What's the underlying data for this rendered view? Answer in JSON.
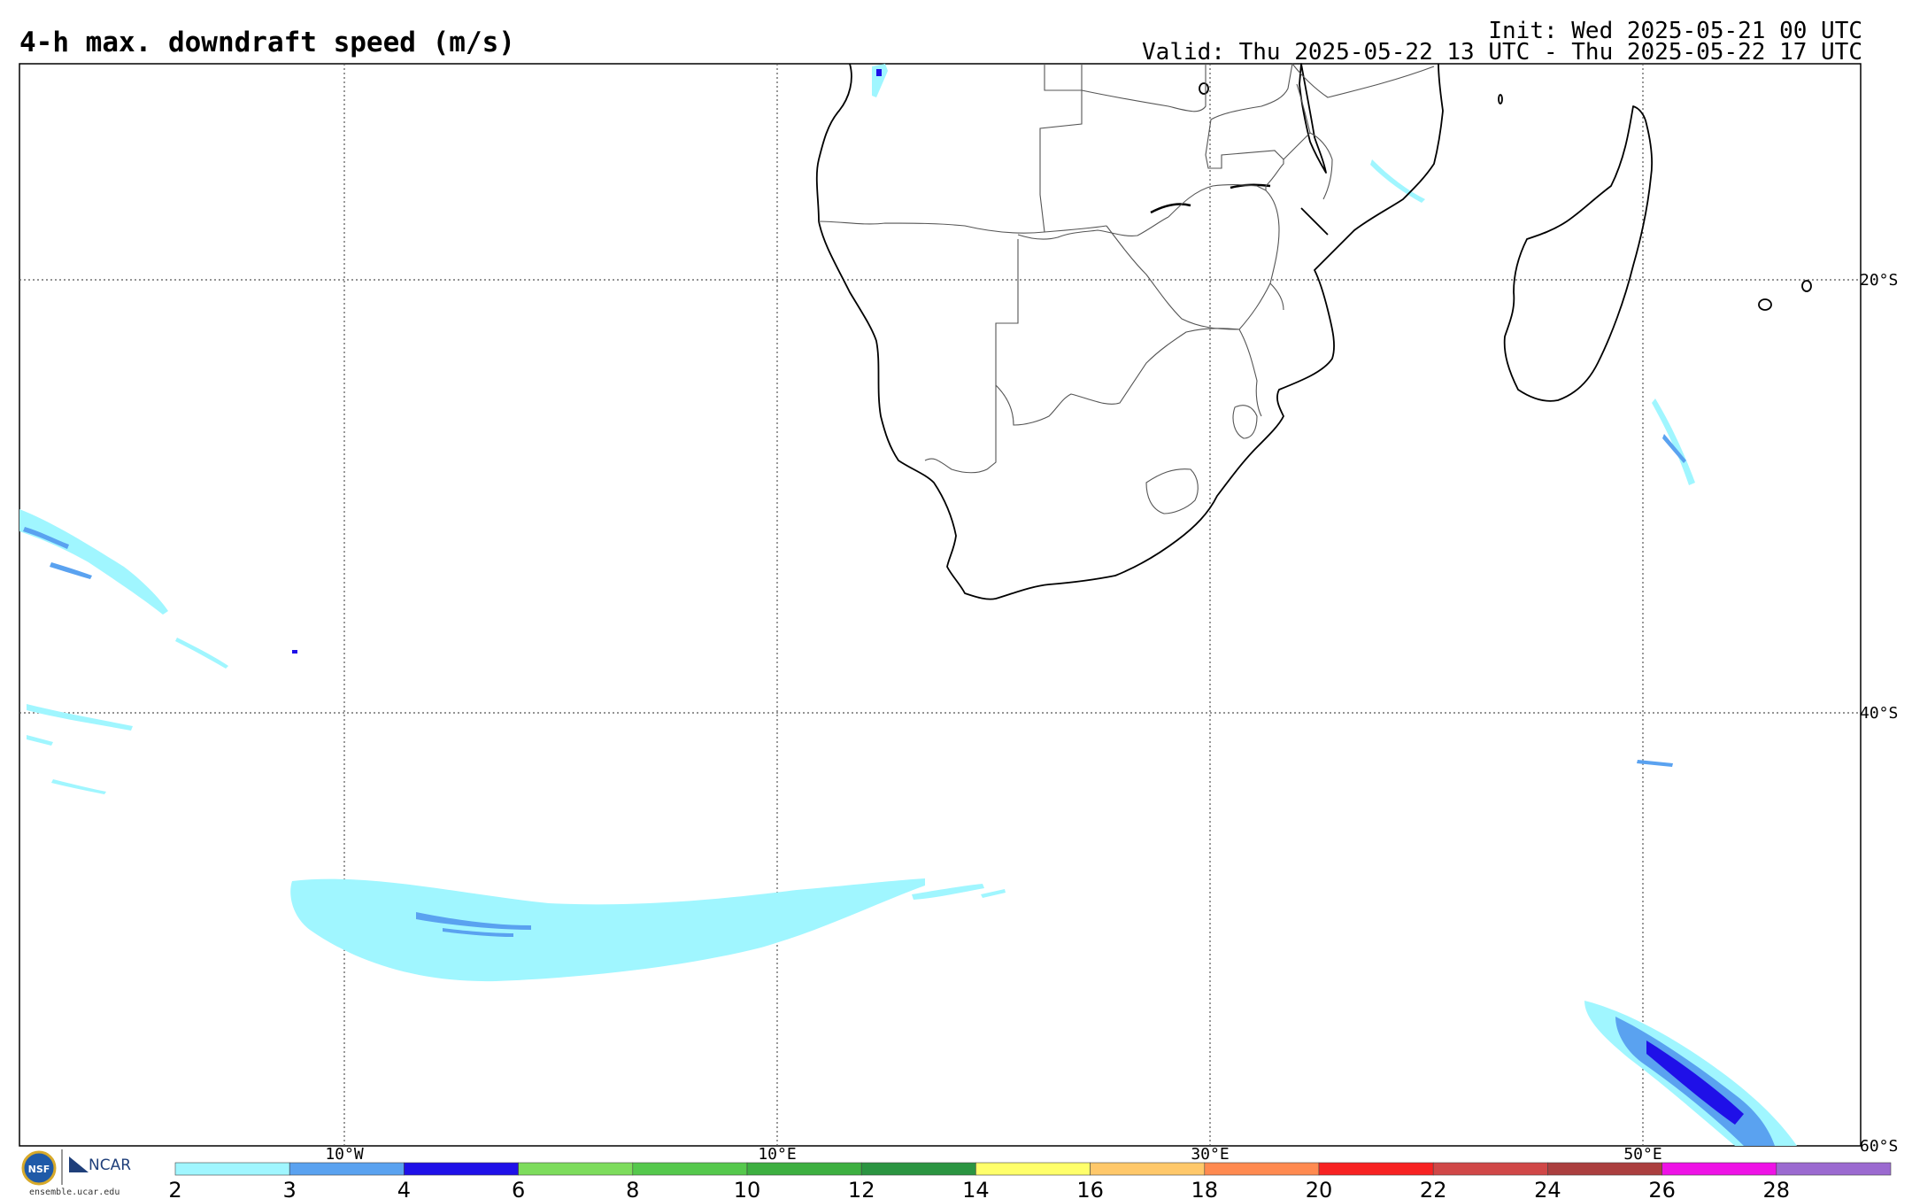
{
  "header": {
    "title": "4-h max. downdraft speed (m/s)",
    "init": "Init: Wed 2025-05-21 00 UTC",
    "valid": "Valid: Thu 2025-05-22 13 UTC - Thu 2025-05-22 17 UTC"
  },
  "map": {
    "lon_labels": [
      "10°W",
      "10°E",
      "30°E",
      "50°E"
    ],
    "lat_labels": [
      "20°S",
      "40°S",
      "60°S"
    ]
  },
  "colorbar": {
    "labels": [
      "2",
      "3",
      "4",
      "6",
      "8",
      "10",
      "12",
      "14",
      "16",
      "18",
      "20",
      "22",
      "24",
      "26",
      "28"
    ],
    "colors": [
      "#a0f6ff",
      "#5aa2f0",
      "#1f10e8",
      "#7ddc5c",
      "#55c84c",
      "#3daf40",
      "#2b9441",
      "#ffff6a",
      "#ffc86a",
      "#ff8a50",
      "#f72222",
      "#d04747",
      "#ab3f3f",
      "#ee12e6",
      "#9b6ad0"
    ]
  },
  "branding": {
    "nsf_text": "NSF",
    "ncar_text": "NCAR",
    "url": "ensemble.ucar.edu"
  }
}
